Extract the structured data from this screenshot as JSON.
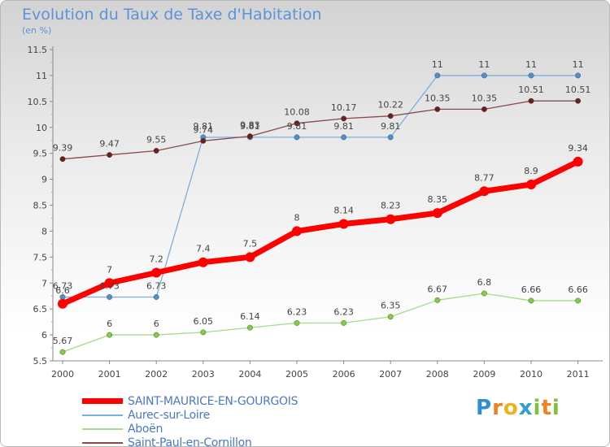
{
  "chart_data": {
    "type": "line",
    "title": "Evolution du Taux de Taxe d'Habitation",
    "subtitle": "(en %)",
    "x": [
      "2000",
      "2001",
      "2002",
      "2003",
      "2004",
      "2005",
      "2006",
      "2007",
      "2008",
      "2009",
      "2010",
      "2011"
    ],
    "ylim": [
      5.5,
      11.5
    ],
    "yticks": [
      "5.5",
      "6",
      "6.5",
      "7",
      "7.5",
      "8",
      "8.5",
      "9",
      "9.5",
      "10",
      "10.5",
      "11",
      "11.5"
    ],
    "grid": false,
    "legend_position": "bottom-left",
    "series": [
      {
        "name": "SAINT-MAURICE-EN-GOURGOIS",
        "color": "#ff0000",
        "line_color": "#ff0000",
        "values": [
          6.6,
          7,
          7.2,
          7.4,
          7.5,
          8,
          8.14,
          8.23,
          8.35,
          8.77,
          8.9,
          9.34
        ],
        "labels": [
          "6.6",
          "7",
          "7.2",
          "7.4",
          "7.5",
          "8",
          "8.14",
          "8.23",
          "8.35",
          "8.77",
          "8.9",
          "9.34"
        ]
      },
      {
        "name": "Aurec-sur-Loire",
        "color": "#4f8fd0",
        "line_color": "#7aaee0",
        "values": [
          6.73,
          6.73,
          6.73,
          9.81,
          9.81,
          9.81,
          9.81,
          9.81,
          11,
          11,
          11,
          11
        ],
        "labels": [
          "6.73",
          "6.73",
          "6.73",
          "9.81",
          "9.81",
          "9.81",
          "9.81",
          "9.81",
          "11",
          "11",
          "11",
          "11"
        ]
      },
      {
        "name": "Aboën",
        "color": "#7fcf3f",
        "line_color": "#a6dc86",
        "values": [
          5.67,
          6,
          6,
          6.05,
          6.14,
          6.23,
          6.23,
          6.35,
          6.67,
          6.8,
          6.66,
          6.66
        ],
        "labels": [
          "5.67",
          "6",
          "6",
          "6.05",
          "6.14",
          "6.23",
          "6.23",
          "6.35",
          "6.67",
          "6.8",
          "6.66",
          "6.66"
        ]
      },
      {
        "name": "Saint-Paul-en-Cornillon",
        "color": "#6b1f1f",
        "line_color": "#8a4a4a",
        "values": [
          9.39,
          9.47,
          9.55,
          9.74,
          9.83,
          10.08,
          10.17,
          10.22,
          10.35,
          10.35,
          10.51,
          10.51
        ],
        "labels": [
          "9.39",
          "9.47",
          "9.55",
          "9.74",
          "9.83",
          "10.08",
          "10.17",
          "10.22",
          "10.35",
          "10.35",
          "10.51",
          "10.51"
        ]
      }
    ]
  },
  "logo": {
    "text": "Proxiti",
    "letters": [
      "P",
      "r",
      "o",
      "x",
      "i",
      "t",
      "i"
    ],
    "colors": [
      "#2f8fd0",
      "#f07f20",
      "#f0b020",
      "#2fa0d0",
      "#80c040",
      "#f07f20",
      "#80c040"
    ]
  }
}
